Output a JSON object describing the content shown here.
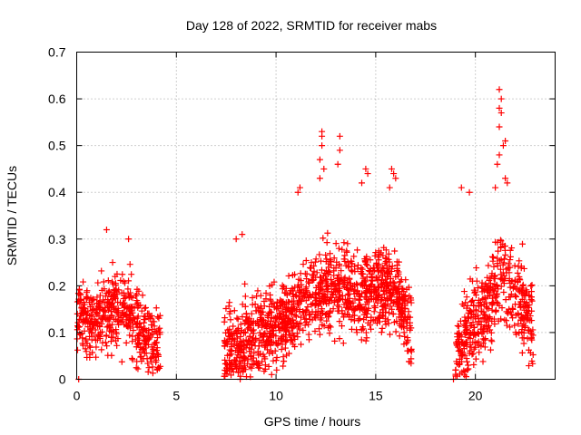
{
  "colors": {
    "points": "#ff0000",
    "grid": "#a0a0a0",
    "axis": "#000000"
  },
  "chart_data": {
    "type": "scatter",
    "marker": "plus",
    "title": "Day 128 of 2022, SRMTID for receiver mabs",
    "xlabel": "GPS time / hours",
    "ylabel": "SRMTID / TECUs",
    "xlim": [
      0,
      24
    ],
    "ylim": [
      0,
      0.7
    ],
    "xticks": [
      0,
      5,
      10,
      15,
      20
    ],
    "xtick_labels": [
      "0",
      "5",
      "10",
      "15",
      "20"
    ],
    "yticks": [
      0,
      0.1,
      0.2,
      0.3,
      0.4,
      0.5,
      0.6,
      0.7
    ],
    "ytick_labels": [
      "0",
      "0.1",
      "0.2",
      "0.3",
      "0.4",
      "0.5",
      "0.6",
      "0.7"
    ],
    "grid": true,
    "series": [
      {
        "name": "SRMTID",
        "segments": [
          {
            "x_start": 0.0,
            "x_end": 4.2,
            "profile": [
              [
                0.0,
                0.12
              ],
              [
                1.0,
                0.13
              ],
              [
                2.0,
                0.16
              ],
              [
                3.0,
                0.12
              ],
              [
                4.2,
                0.05
              ]
            ],
            "spread": 0.07,
            "count": 480
          },
          {
            "x_start": 7.4,
            "x_end": 16.8,
            "profile": [
              [
                7.4,
                0.05
              ],
              [
                8.5,
                0.08
              ],
              [
                10.0,
                0.11
              ],
              [
                11.5,
                0.17
              ],
              [
                12.5,
                0.2
              ],
              [
                14.0,
                0.18
              ],
              [
                15.0,
                0.2
              ],
              [
                16.0,
                0.19
              ],
              [
                16.8,
                0.1
              ]
            ],
            "spread": 0.08,
            "count": 1250
          },
          {
            "x_start": 19.0,
            "x_end": 22.9,
            "profile": [
              [
                19.0,
                0.04
              ],
              [
                19.5,
                0.1
              ],
              [
                20.5,
                0.15
              ],
              [
                21.3,
                0.22
              ],
              [
                22.0,
                0.18
              ],
              [
                22.9,
                0.12
              ]
            ],
            "spread": 0.09,
            "count": 460
          }
        ],
        "peaks": [
          {
            "x": 1.5,
            "y": 0.32
          },
          {
            "x": 2.6,
            "y": 0.3
          },
          {
            "x": 1.8,
            "y": 0.25
          },
          {
            "x": 8.0,
            "y": 0.3
          },
          {
            "x": 8.3,
            "y": 0.31
          },
          {
            "x": 11.2,
            "y": 0.41
          },
          {
            "x": 11.1,
            "y": 0.4
          },
          {
            "x": 12.3,
            "y": 0.53
          },
          {
            "x": 12.3,
            "y": 0.52
          },
          {
            "x": 12.3,
            "y": 0.5
          },
          {
            "x": 12.2,
            "y": 0.47
          },
          {
            "x": 12.4,
            "y": 0.45
          },
          {
            "x": 12.2,
            "y": 0.43
          },
          {
            "x": 13.2,
            "y": 0.52
          },
          {
            "x": 13.2,
            "y": 0.49
          },
          {
            "x": 13.1,
            "y": 0.46
          },
          {
            "x": 14.5,
            "y": 0.45
          },
          {
            "x": 14.6,
            "y": 0.44
          },
          {
            "x": 14.3,
            "y": 0.42
          },
          {
            "x": 15.8,
            "y": 0.45
          },
          {
            "x": 15.9,
            "y": 0.44
          },
          {
            "x": 16.0,
            "y": 0.43
          },
          {
            "x": 15.7,
            "y": 0.41
          },
          {
            "x": 19.3,
            "y": 0.41
          },
          {
            "x": 19.7,
            "y": 0.4
          },
          {
            "x": 21.2,
            "y": 0.62
          },
          {
            "x": 21.3,
            "y": 0.6
          },
          {
            "x": 21.2,
            "y": 0.58
          },
          {
            "x": 21.3,
            "y": 0.57
          },
          {
            "x": 21.2,
            "y": 0.54
          },
          {
            "x": 21.5,
            "y": 0.51
          },
          {
            "x": 21.4,
            "y": 0.5
          },
          {
            "x": 21.2,
            "y": 0.48
          },
          {
            "x": 21.1,
            "y": 0.46
          },
          {
            "x": 21.5,
            "y": 0.43
          },
          {
            "x": 21.6,
            "y": 0.42
          },
          {
            "x": 21.0,
            "y": 0.41
          }
        ],
        "zeros": [
          0.1,
          8.2,
          18.9
        ]
      }
    ]
  }
}
